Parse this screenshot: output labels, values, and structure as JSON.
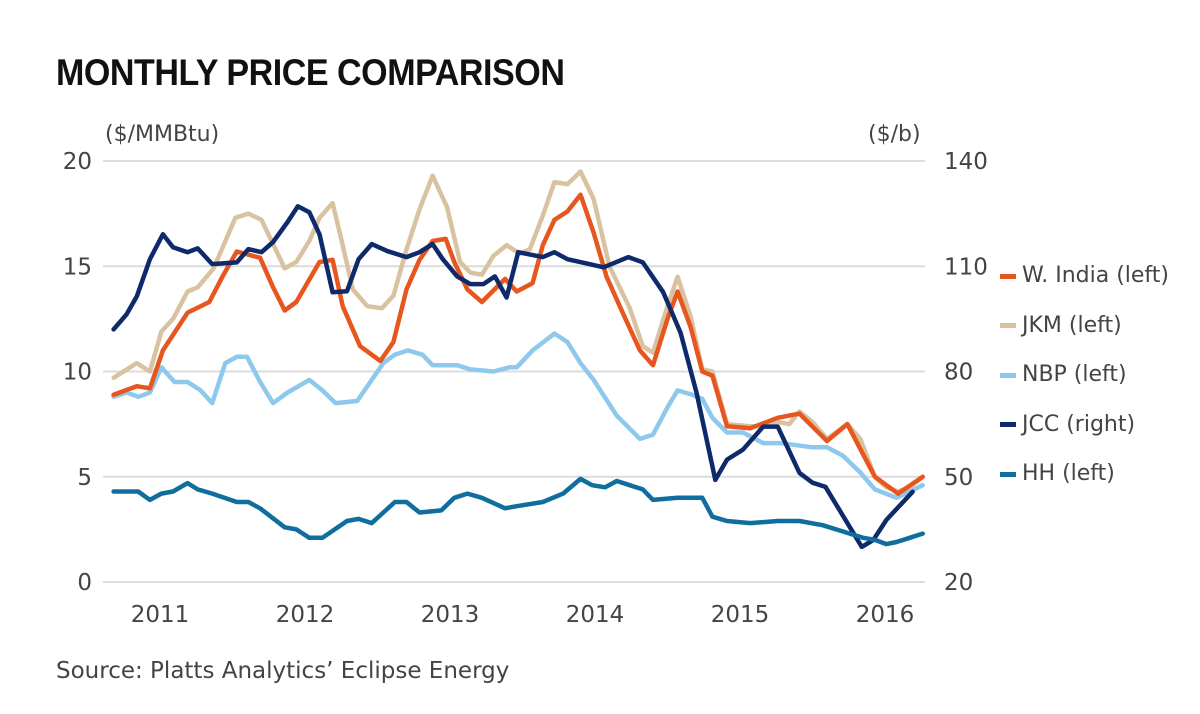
{
  "chart_data": {
    "type": "line",
    "title": "MONTHLY PRICE COMPARISON",
    "ylabel_left": "($/MMBtu)",
    "ylabel_right": "($/b)",
    "ylim_left": [
      0,
      20
    ],
    "ylim_right": [
      20,
      140
    ],
    "yticks_left": [
      "0",
      "5",
      "10",
      "15",
      "20"
    ],
    "yticks_right": [
      "20",
      "50",
      "80",
      "110",
      "140"
    ],
    "xlim": [
      2010.65,
      2016.3
    ],
    "xticks": [
      "2011",
      "2012",
      "2013",
      "2014",
      "2015",
      "2016"
    ],
    "grid": true,
    "legend_position": "right",
    "source": "Source: Platts Analytics’ Eclipse Energy",
    "series": [
      {
        "name": "NBP (left)",
        "axis": "left",
        "color": "#8ec8ec",
        "points": [
          [
            2010.68,
            8.8
          ],
          [
            2010.77,
            9.0
          ],
          [
            2010.85,
            8.8
          ],
          [
            2010.93,
            9.0
          ],
          [
            2011.01,
            10.2
          ],
          [
            2011.1,
            9.5
          ],
          [
            2011.19,
            9.5
          ],
          [
            2011.28,
            9.1
          ],
          [
            2011.36,
            8.5
          ],
          [
            2011.45,
            10.4
          ],
          [
            2011.53,
            10.7
          ],
          [
            2011.6,
            10.7
          ],
          [
            2011.69,
            9.5
          ],
          [
            2011.78,
            8.5
          ],
          [
            2011.88,
            9.0
          ],
          [
            2012.03,
            9.6
          ],
          [
            2012.12,
            9.1
          ],
          [
            2012.21,
            8.5
          ],
          [
            2012.36,
            8.6
          ],
          [
            2012.45,
            9.5
          ],
          [
            2012.54,
            10.4
          ],
          [
            2012.62,
            10.8
          ],
          [
            2012.71,
            11.0
          ],
          [
            2012.81,
            10.8
          ],
          [
            2012.88,
            10.3
          ],
          [
            2013.05,
            10.3
          ],
          [
            2013.14,
            10.1
          ],
          [
            2013.3,
            10.0
          ],
          [
            2013.41,
            10.2
          ],
          [
            2013.46,
            10.2
          ],
          [
            2013.57,
            11.0
          ],
          [
            2013.72,
            11.8
          ],
          [
            2013.81,
            11.4
          ],
          [
            2013.9,
            10.4
          ],
          [
            2013.99,
            9.6
          ],
          [
            2014.15,
            7.9
          ],
          [
            2014.31,
            6.8
          ],
          [
            2014.4,
            7.0
          ],
          [
            2014.5,
            8.3
          ],
          [
            2014.57,
            9.1
          ],
          [
            2014.67,
            8.9
          ],
          [
            2014.74,
            8.7
          ],
          [
            2014.81,
            7.8
          ],
          [
            2014.91,
            7.1
          ],
          [
            2015.02,
            7.1
          ],
          [
            2015.16,
            6.6
          ],
          [
            2015.28,
            6.6
          ],
          [
            2015.39,
            6.5
          ],
          [
            2015.5,
            6.4
          ],
          [
            2015.6,
            6.4
          ],
          [
            2015.71,
            6.0
          ],
          [
            2015.83,
            5.2
          ],
          [
            2015.93,
            4.4
          ],
          [
            2016.08,
            4.0
          ],
          [
            2016.17,
            4.3
          ],
          [
            2016.26,
            4.6
          ]
        ]
      },
      {
        "name": "JKM (left)",
        "axis": "left",
        "color": "#d9c2a0",
        "points": [
          [
            2010.68,
            9.7
          ],
          [
            2010.84,
            10.4
          ],
          [
            2010.93,
            10.0
          ],
          [
            2011.01,
            11.9
          ],
          [
            2011.09,
            12.5
          ],
          [
            2011.19,
            13.8
          ],
          [
            2011.26,
            14.0
          ],
          [
            2011.37,
            14.9
          ],
          [
            2011.52,
            17.3
          ],
          [
            2011.61,
            17.5
          ],
          [
            2011.7,
            17.2
          ],
          [
            2011.86,
            14.9
          ],
          [
            2011.94,
            15.2
          ],
          [
            2012.03,
            16.2
          ],
          [
            2012.1,
            17.3
          ],
          [
            2012.19,
            18.0
          ],
          [
            2012.26,
            16.0
          ],
          [
            2012.33,
            13.9
          ],
          [
            2012.43,
            13.1
          ],
          [
            2012.53,
            13.0
          ],
          [
            2012.61,
            13.6
          ],
          [
            2012.7,
            15.8
          ],
          [
            2012.79,
            17.7
          ],
          [
            2012.88,
            19.3
          ],
          [
            2012.98,
            17.8
          ],
          [
            2013.07,
            15.2
          ],
          [
            2013.14,
            14.7
          ],
          [
            2013.22,
            14.6
          ],
          [
            2013.3,
            15.5
          ],
          [
            2013.39,
            16.0
          ],
          [
            2013.48,
            15.6
          ],
          [
            2013.55,
            15.8
          ],
          [
            2013.64,
            17.4
          ],
          [
            2013.72,
            19.0
          ],
          [
            2013.81,
            18.9
          ],
          [
            2013.9,
            19.5
          ],
          [
            2013.99,
            18.2
          ],
          [
            2014.1,
            15.0
          ],
          [
            2014.24,
            13.0
          ],
          [
            2014.33,
            11.2
          ],
          [
            2014.4,
            10.9
          ],
          [
            2014.5,
            13.1
          ],
          [
            2014.57,
            14.5
          ],
          [
            2014.66,
            12.6
          ],
          [
            2014.74,
            10.1
          ],
          [
            2014.81,
            10.0
          ],
          [
            2014.91,
            7.5
          ],
          [
            2015.07,
            7.4
          ],
          [
            2015.16,
            7.4
          ],
          [
            2015.26,
            7.6
          ],
          [
            2015.34,
            7.5
          ],
          [
            2015.41,
            8.1
          ],
          [
            2015.5,
            7.6
          ],
          [
            2015.6,
            6.8
          ],
          [
            2015.74,
            7.5
          ],
          [
            2015.83,
            6.8
          ],
          [
            2015.93,
            5.0
          ],
          [
            2016.01,
            4.5
          ],
          [
            2016.09,
            4.3
          ],
          [
            2016.17,
            4.5
          ],
          [
            2016.26,
            5.0
          ]
        ]
      },
      {
        "name": "W. India (left)",
        "axis": "left",
        "color": "#e8561f",
        "points": [
          [
            2010.68,
            8.9
          ],
          [
            2010.84,
            9.3
          ],
          [
            2010.93,
            9.2
          ],
          [
            2011.02,
            11.0
          ],
          [
            2011.19,
            12.8
          ],
          [
            2011.34,
            13.3
          ],
          [
            2011.43,
            14.5
          ],
          [
            2011.53,
            15.7
          ],
          [
            2011.69,
            15.4
          ],
          [
            2011.78,
            14.0
          ],
          [
            2011.86,
            12.9
          ],
          [
            2011.94,
            13.3
          ],
          [
            2012.1,
            15.2
          ],
          [
            2012.19,
            15.3
          ],
          [
            2012.26,
            13.1
          ],
          [
            2012.38,
            11.2
          ],
          [
            2012.52,
            10.5
          ],
          [
            2012.61,
            11.4
          ],
          [
            2012.7,
            13.9
          ],
          [
            2012.79,
            15.3
          ],
          [
            2012.88,
            16.2
          ],
          [
            2012.97,
            16.3
          ],
          [
            2013.03,
            15.2
          ],
          [
            2013.12,
            13.9
          ],
          [
            2013.22,
            13.3
          ],
          [
            2013.38,
            14.4
          ],
          [
            2013.46,
            13.8
          ],
          [
            2013.57,
            14.2
          ],
          [
            2013.64,
            16.0
          ],
          [
            2013.72,
            17.2
          ],
          [
            2013.81,
            17.6
          ],
          [
            2013.9,
            18.4
          ],
          [
            2013.99,
            16.6
          ],
          [
            2014.08,
            14.5
          ],
          [
            2014.19,
            12.8
          ],
          [
            2014.31,
            11.0
          ],
          [
            2014.4,
            10.3
          ],
          [
            2014.5,
            12.5
          ],
          [
            2014.57,
            13.8
          ],
          [
            2014.66,
            12.1
          ],
          [
            2014.74,
            10.0
          ],
          [
            2014.81,
            9.8
          ],
          [
            2014.91,
            7.4
          ],
          [
            2015.07,
            7.3
          ],
          [
            2015.26,
            7.8
          ],
          [
            2015.41,
            8.0
          ],
          [
            2015.6,
            6.7
          ],
          [
            2015.74,
            7.5
          ],
          [
            2015.93,
            5.0
          ],
          [
            2016.09,
            4.2
          ],
          [
            2016.26,
            5.0
          ]
        ]
      },
      {
        "name": "JCC (right)",
        "axis": "right",
        "color": "#0f2a6b",
        "points": [
          [
            2010.68,
            92
          ],
          [
            2010.77,
            96.3
          ],
          [
            2010.84,
            101.4
          ],
          [
            2010.93,
            112
          ],
          [
            2011.02,
            119.1
          ],
          [
            2011.09,
            115.4
          ],
          [
            2011.19,
            114
          ],
          [
            2011.26,
            115.1
          ],
          [
            2011.36,
            110.6
          ],
          [
            2011.53,
            111.1
          ],
          [
            2011.61,
            114.9
          ],
          [
            2011.7,
            114
          ],
          [
            2011.78,
            116.9
          ],
          [
            2011.88,
            122.6
          ],
          [
            2011.95,
            127.1
          ],
          [
            2012.03,
            125.4
          ],
          [
            2012.1,
            119.1
          ],
          [
            2012.19,
            102.6
          ],
          [
            2012.29,
            102.9
          ],
          [
            2012.37,
            112
          ],
          [
            2012.46,
            116.3
          ],
          [
            2012.57,
            114.3
          ],
          [
            2012.7,
            112.6
          ],
          [
            2012.79,
            114
          ],
          [
            2012.88,
            116.3
          ],
          [
            2012.95,
            112
          ],
          [
            2013.05,
            107.1
          ],
          [
            2013.14,
            104.9
          ],
          [
            2013.23,
            104.9
          ],
          [
            2013.31,
            107.1
          ],
          [
            2013.39,
            101.1
          ],
          [
            2013.47,
            114
          ],
          [
            2013.64,
            112.6
          ],
          [
            2013.72,
            114
          ],
          [
            2013.81,
            112
          ],
          [
            2014.06,
            109.7
          ],
          [
            2014.23,
            112.6
          ],
          [
            2014.33,
            111.1
          ],
          [
            2014.47,
            102.6
          ],
          [
            2014.59,
            91.1
          ],
          [
            2014.7,
            74
          ],
          [
            2014.83,
            49.1
          ],
          [
            2014.91,
            54.9
          ],
          [
            2015.02,
            57.7
          ],
          [
            2015.16,
            64.3
          ],
          [
            2015.26,
            64.3
          ],
          [
            2015.41,
            51.1
          ],
          [
            2015.5,
            48.3
          ],
          [
            2015.59,
            47.1
          ],
          [
            2015.84,
            30
          ],
          [
            2015.92,
            32
          ],
          [
            2016.01,
            37.7
          ],
          [
            2016.19,
            45.7
          ]
        ]
      },
      {
        "name": "HH (left)",
        "axis": "left",
        "color": "#0f6e9e",
        "points": [
          [
            2010.68,
            4.3
          ],
          [
            2010.85,
            4.3
          ],
          [
            2010.93,
            3.9
          ],
          [
            2011.01,
            4.2
          ],
          [
            2011.09,
            4.3
          ],
          [
            2011.19,
            4.7
          ],
          [
            2011.26,
            4.4
          ],
          [
            2011.36,
            4.2
          ],
          [
            2011.53,
            3.8
          ],
          [
            2011.61,
            3.8
          ],
          [
            2011.69,
            3.5
          ],
          [
            2011.86,
            2.6
          ],
          [
            2011.94,
            2.5
          ],
          [
            2012.03,
            2.1
          ],
          [
            2012.12,
            2.1
          ],
          [
            2012.29,
            2.9
          ],
          [
            2012.37,
            3.0
          ],
          [
            2012.46,
            2.8
          ],
          [
            2012.62,
            3.8
          ],
          [
            2012.7,
            3.8
          ],
          [
            2012.79,
            3.3
          ],
          [
            2012.94,
            3.4
          ],
          [
            2013.03,
            4.0
          ],
          [
            2013.12,
            4.2
          ],
          [
            2013.22,
            4.0
          ],
          [
            2013.38,
            3.5
          ],
          [
            2013.46,
            3.6
          ],
          [
            2013.64,
            3.8
          ],
          [
            2013.78,
            4.2
          ],
          [
            2013.9,
            4.9
          ],
          [
            2013.98,
            4.6
          ],
          [
            2014.07,
            4.5
          ],
          [
            2014.15,
            4.8
          ],
          [
            2014.24,
            4.6
          ],
          [
            2014.33,
            4.4
          ],
          [
            2014.4,
            3.9
          ],
          [
            2014.57,
            4.0
          ],
          [
            2014.74,
            4.0
          ],
          [
            2014.81,
            3.1
          ],
          [
            2014.91,
            2.9
          ],
          [
            2015.07,
            2.8
          ],
          [
            2015.26,
            2.9
          ],
          [
            2015.41,
            2.9
          ],
          [
            2015.57,
            2.7
          ],
          [
            2015.71,
            2.4
          ],
          [
            2015.85,
            2.1
          ],
          [
            2015.93,
            2.0
          ],
          [
            2016.01,
            1.8
          ],
          [
            2016.08,
            1.9
          ],
          [
            2016.17,
            2.1
          ],
          [
            2016.26,
            2.3
          ]
        ]
      }
    ],
    "legend_order": [
      "W. India (left)",
      "JKM (left)",
      "NBP (left)",
      "JCC (right)",
      "HH (left)"
    ]
  }
}
